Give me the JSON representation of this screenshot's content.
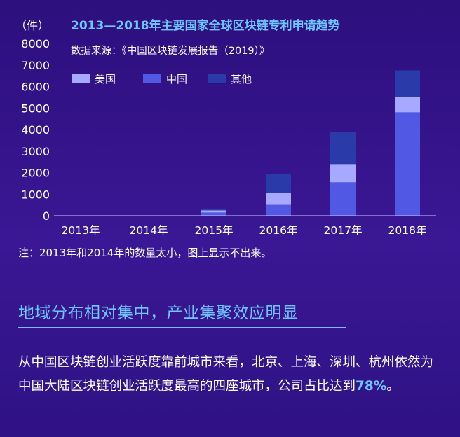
{
  "chart_data": {
    "type": "bar",
    "stacked": true,
    "title": "2013—2018年主要国家全球区块链专利申请趋势",
    "subtitle": "数据来源：《中国区块链发展报告（2019）》",
    "ylabel": "（件）",
    "xlabel": "",
    "ylim": [
      0,
      8000
    ],
    "yticks": [
      0,
      1000,
      2000,
      3000,
      4000,
      5000,
      6000,
      7000,
      8000
    ],
    "categories": [
      "2013年",
      "2014年",
      "2015年",
      "2016年",
      "2017年",
      "2018年"
    ],
    "series": [
      {
        "name": "中国",
        "color": "#5159e4",
        "values": [
          0,
          0,
          150,
          500,
          1550,
          4800
        ]
      },
      {
        "name": "美国",
        "color": "#a6a9ff",
        "values": [
          0,
          0,
          100,
          550,
          850,
          700
        ]
      },
      {
        "name": "其他",
        "color": "#2b3aa9",
        "values": [
          0,
          0,
          80,
          900,
          1500,
          1250
        ]
      }
    ],
    "legend_order": [
      "美国",
      "中国",
      "其他"
    ],
    "legend_position": "top-left",
    "grid": false
  },
  "note": "注：2013年和2014年的数量太小，图上显示不出来。",
  "section_heading": "地域分布相对集中，产业集聚效应明显",
  "paragraph": {
    "text": "从中国区块链创业活跃度靠前城市来看，北京、上海、深圳、杭州依然为中国大陆区块链创业活跃度最高的四座城市，公司占比达到",
    "highlight": "78%",
    "end": "。"
  }
}
